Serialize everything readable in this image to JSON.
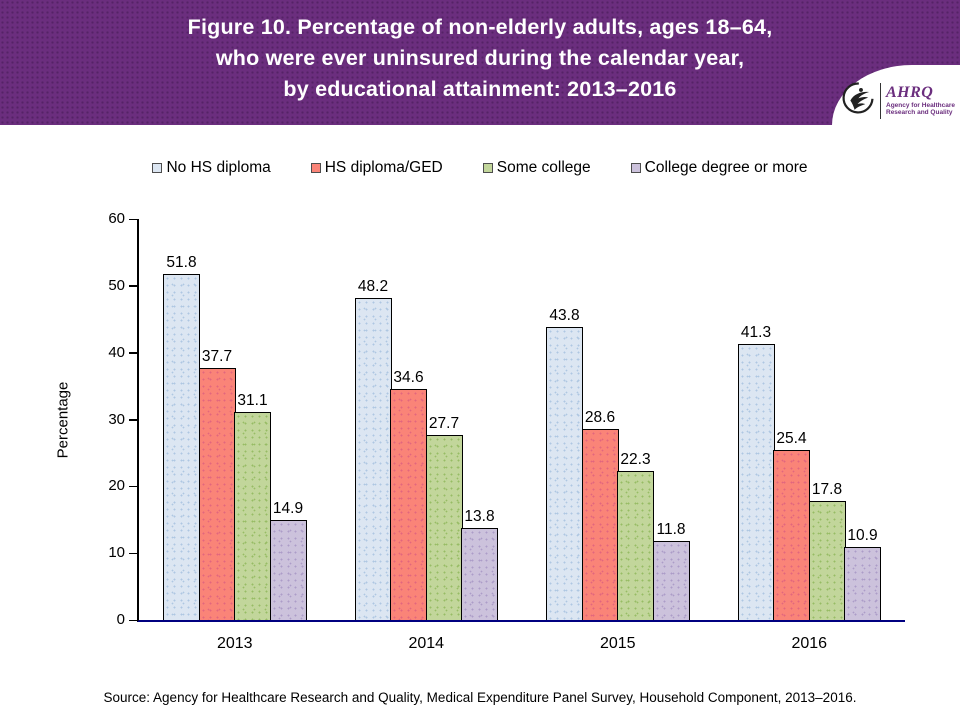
{
  "header": {
    "title_lines": [
      "Figure 10. Percentage of non-elderly adults, ages 18–64,",
      "who were ever uninsured during the calendar year,",
      "by educational attainment: 2013–2016"
    ],
    "banner_color": "#6B2E7E",
    "logo": {
      "acronym": "AHRQ",
      "tagline_line1": "Agency for Healthcare",
      "tagline_line2": "Research and Quality",
      "eagle_icon": "hhs-eagle-icon"
    }
  },
  "chart_data": {
    "type": "bar",
    "title": "Percentage of non-elderly adults, ages 18–64, who were ever uninsured during the calendar year, by educational attainment: 2013–2016",
    "categories": [
      "2013",
      "2014",
      "2015",
      "2016"
    ],
    "series": [
      {
        "name": "No HS diploma",
        "fill": "#DCE6F2",
        "dot": "#AEC7E2",
        "values": [
          51.8,
          48.2,
          43.8,
          41.3
        ]
      },
      {
        "name": "HS diploma/GED",
        "fill": "#FA8478",
        "dot": "#E2667E",
        "values": [
          37.7,
          34.6,
          28.6,
          25.4
        ]
      },
      {
        "name": "Some college",
        "fill": "#C2D69B",
        "dot": "#97BC64",
        "values": [
          31.1,
          27.7,
          22.3,
          17.8
        ]
      },
      {
        "name": "College degree or more",
        "fill": "#CCC2DC",
        "dot": "#AC9CC8",
        "values": [
          14.9,
          13.8,
          11.8,
          10.9
        ]
      }
    ],
    "xlabel": "",
    "ylabel": "Percentage",
    "ylim": [
      0,
      60
    ],
    "yticks": [
      0,
      10,
      20,
      30,
      40,
      50,
      60
    ],
    "grid": false,
    "legend_position": "top",
    "axis_line_color": "#000080"
  },
  "footer": {
    "source": "Source: Agency for Healthcare Research and Quality, Medical Expenditure Panel Survey, Household Component, 2013–2016."
  }
}
